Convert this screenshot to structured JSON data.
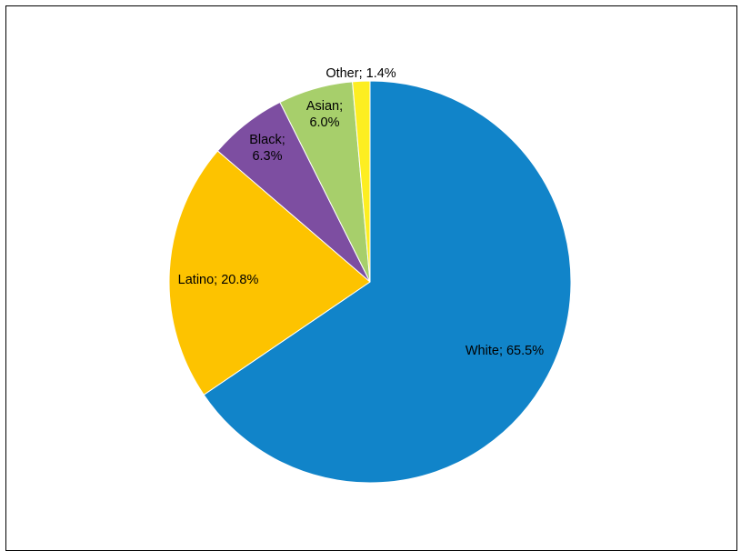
{
  "chart_data": {
    "type": "pie",
    "title": "",
    "slices": [
      {
        "name": "White",
        "value": 65.5,
        "label_lines": [
          "White; 65.5%"
        ],
        "color": "#1184c9"
      },
      {
        "name": "Latino",
        "value": 20.8,
        "label_lines": [
          "Latino; 20.8%"
        ],
        "color": "#fdc300"
      },
      {
        "name": "Black",
        "value": 6.3,
        "label_lines": [
          "Black;",
          "6.3%"
        ],
        "color": "#7d4ea1"
      },
      {
        "name": "Asian",
        "value": 6.0,
        "label_lines": [
          "Asian;",
          "6.0%"
        ],
        "color": "#a7cf6b"
      },
      {
        "name": "Other",
        "value": 1.4,
        "label_lines": [
          "Other; 1.4%"
        ],
        "color": "#fdee21"
      }
    ],
    "legend": "none",
    "start": "12 o'clock",
    "direction": "clockwise",
    "slice_border_color": "#ffffff"
  }
}
